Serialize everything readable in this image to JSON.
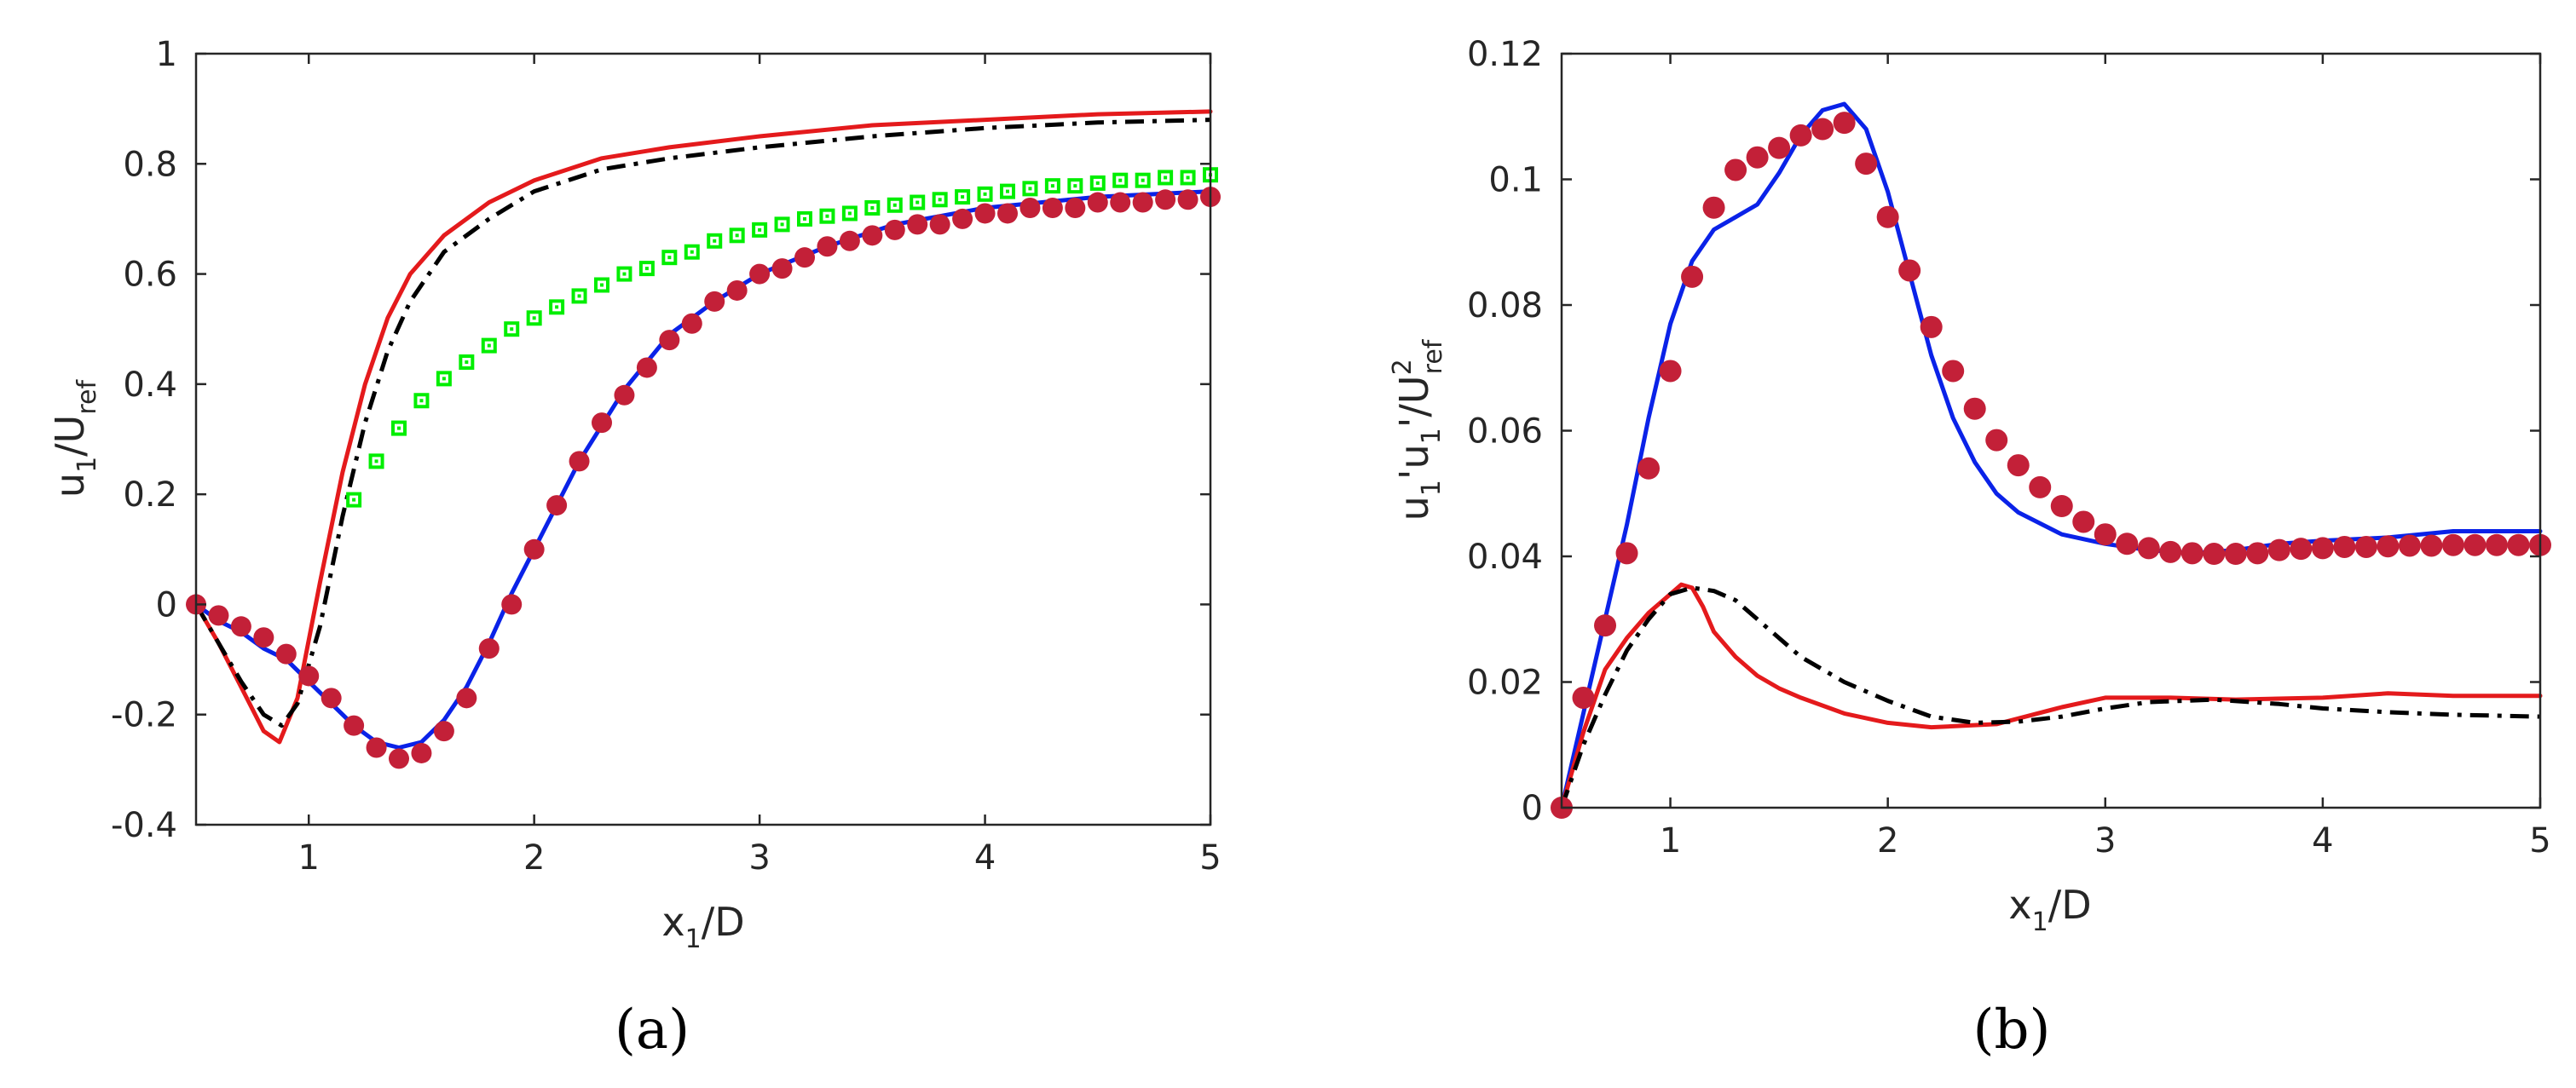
{
  "chart_data": [
    {
      "type": "line",
      "panel_label": "(a)",
      "xlabel": {
        "main": "x",
        "sub": "1",
        "rest": "/D"
      },
      "ylabel": {
        "main": "u",
        "sub": "1",
        "rest": "/U",
        "sub2": "ref"
      },
      "xlim": [
        0.5,
        5
      ],
      "ylim": [
        -0.4,
        1
      ],
      "xticks": [
        1,
        2,
        3,
        4,
        5
      ],
      "xtick_labels": [
        "1",
        "2",
        "3",
        "4",
        "5"
      ],
      "yticks": [
        -0.4,
        -0.2,
        0,
        0.2,
        0.4,
        0.6,
        0.8,
        1
      ],
      "ytick_labels": [
        "-0.4",
        "-0.2",
        "0",
        "0.2",
        "0.4",
        "0.6",
        "0.8",
        "1"
      ],
      "grid": false,
      "series": [
        {
          "name": "red-solid-line",
          "kind": "line",
          "color": "#e41a1c",
          "dash": "",
          "x": [
            0.5,
            0.6,
            0.7,
            0.8,
            0.87,
            0.95,
            1.05,
            1.15,
            1.25,
            1.35,
            1.45,
            1.6,
            1.8,
            2.0,
            2.3,
            2.6,
            3.0,
            3.5,
            4.0,
            4.5,
            5.0
          ],
          "y": [
            0.0,
            -0.07,
            -0.15,
            -0.23,
            -0.25,
            -0.17,
            0.04,
            0.24,
            0.4,
            0.52,
            0.6,
            0.67,
            0.73,
            0.77,
            0.81,
            0.83,
            0.85,
            0.87,
            0.88,
            0.89,
            0.895
          ]
        },
        {
          "name": "black-dashdot-line",
          "kind": "line",
          "color": "#000000",
          "dash": "22,10,5,10",
          "x": [
            0.5,
            0.6,
            0.7,
            0.8,
            0.88,
            0.95,
            1.05,
            1.15,
            1.25,
            1.35,
            1.45,
            1.6,
            1.8,
            2.0,
            2.3,
            2.6,
            3.0,
            3.5,
            4.0,
            4.5,
            5.0
          ],
          "y": [
            0.0,
            -0.07,
            -0.14,
            -0.2,
            -0.22,
            -0.18,
            -0.04,
            0.16,
            0.33,
            0.46,
            0.55,
            0.64,
            0.7,
            0.75,
            0.79,
            0.81,
            0.83,
            0.85,
            0.865,
            0.875,
            0.88
          ]
        },
        {
          "name": "blue-solid-line",
          "kind": "line",
          "color": "#0a22e8",
          "dash": "",
          "x": [
            0.5,
            0.6,
            0.7,
            0.8,
            0.9,
            1.0,
            1.1,
            1.2,
            1.3,
            1.4,
            1.5,
            1.6,
            1.7,
            1.8,
            1.9,
            2.0,
            2.1,
            2.2,
            2.4,
            2.6,
            2.8,
            3.0,
            3.3,
            3.6,
            4.0,
            4.5,
            5.0
          ],
          "y": [
            0.0,
            -0.03,
            -0.05,
            -0.08,
            -0.1,
            -0.14,
            -0.18,
            -0.22,
            -0.25,
            -0.26,
            -0.25,
            -0.21,
            -0.15,
            -0.07,
            0.02,
            0.1,
            0.18,
            0.26,
            0.39,
            0.49,
            0.55,
            0.6,
            0.65,
            0.69,
            0.72,
            0.74,
            0.75
          ]
        },
        {
          "name": "green-square-markers",
          "kind": "marker",
          "marker": "square",
          "color": "#00ee00",
          "x": [
            1.2,
            1.3,
            1.4,
            1.5,
            1.6,
            1.7,
            1.8,
            1.9,
            2.0,
            2.1,
            2.2,
            2.3,
            2.4,
            2.5,
            2.6,
            2.7,
            2.8,
            2.9,
            3.0,
            3.1,
            3.2,
            3.3,
            3.4,
            3.5,
            3.6,
            3.7,
            3.8,
            3.9,
            4.0,
            4.1,
            4.2,
            4.3,
            4.4,
            4.5,
            4.6,
            4.7,
            4.8,
            4.9,
            5.0
          ],
          "y": [
            0.19,
            0.26,
            0.32,
            0.37,
            0.41,
            0.44,
            0.47,
            0.5,
            0.52,
            0.54,
            0.56,
            0.58,
            0.6,
            0.61,
            0.63,
            0.64,
            0.66,
            0.67,
            0.68,
            0.69,
            0.7,
            0.705,
            0.71,
            0.72,
            0.725,
            0.73,
            0.735,
            0.74,
            0.745,
            0.75,
            0.755,
            0.76,
            0.76,
            0.765,
            0.77,
            0.77,
            0.775,
            0.775,
            0.78
          ]
        },
        {
          "name": "crimson-circle-markers",
          "kind": "marker",
          "marker": "circle",
          "color": "#c32038",
          "x": [
            0.5,
            0.6,
            0.7,
            0.8,
            0.9,
            1.0,
            1.1,
            1.2,
            1.3,
            1.4,
            1.5,
            1.6,
            1.7,
            1.8,
            1.9,
            2.0,
            2.1,
            2.2,
            2.3,
            2.4,
            2.5,
            2.6,
            2.7,
            2.8,
            2.9,
            3.0,
            3.1,
            3.2,
            3.3,
            3.4,
            3.5,
            3.6,
            3.7,
            3.8,
            3.9,
            4.0,
            4.1,
            4.2,
            4.3,
            4.4,
            4.5,
            4.6,
            4.7,
            4.8,
            4.9,
            5.0
          ],
          "y": [
            0.0,
            -0.02,
            -0.04,
            -0.06,
            -0.09,
            -0.13,
            -0.17,
            -0.22,
            -0.26,
            -0.28,
            -0.27,
            -0.23,
            -0.17,
            -0.08,
            0.0,
            0.1,
            0.18,
            0.26,
            0.33,
            0.38,
            0.43,
            0.48,
            0.51,
            0.55,
            0.57,
            0.6,
            0.61,
            0.63,
            0.65,
            0.66,
            0.67,
            0.68,
            0.69,
            0.69,
            0.7,
            0.71,
            0.71,
            0.72,
            0.72,
            0.72,
            0.73,
            0.73,
            0.73,
            0.735,
            0.735,
            0.74
          ]
        }
      ]
    },
    {
      "type": "line",
      "panel_label": "(b)",
      "xlabel": {
        "main": "x",
        "sub": "1",
        "rest": "/D"
      },
      "ylabel": {
        "p1": "u",
        "s1": "1",
        "p2": "'u",
        "s2": "1",
        "p3": "'/U",
        "sup": "2",
        "sub": "ref"
      },
      "xlim": [
        0.5,
        5
      ],
      "ylim": [
        0,
        0.12
      ],
      "xticks": [
        1,
        2,
        3,
        4,
        5
      ],
      "xtick_labels": [
        "1",
        "2",
        "3",
        "4",
        "5"
      ],
      "yticks": [
        0,
        0.02,
        0.04,
        0.06,
        0.08,
        0.1,
        0.12
      ],
      "ytick_labels": [
        "0",
        "0.02",
        "0.04",
        "0.06",
        "0.08",
        "0.1",
        "0.12"
      ],
      "grid": false,
      "series": [
        {
          "name": "blue-solid-line",
          "kind": "line",
          "color": "#0a22e8",
          "dash": "",
          "x": [
            0.5,
            0.6,
            0.7,
            0.8,
            0.9,
            1.0,
            1.1,
            1.2,
            1.3,
            1.4,
            1.5,
            1.6,
            1.7,
            1.8,
            1.9,
            2.0,
            2.1,
            2.2,
            2.3,
            2.4,
            2.5,
            2.6,
            2.8,
            3.0,
            3.2,
            3.4,
            3.6,
            3.8,
            4.0,
            4.3,
            4.6,
            5.0
          ],
          "y": [
            0.0,
            0.015,
            0.03,
            0.045,
            0.062,
            0.077,
            0.087,
            0.092,
            0.094,
            0.096,
            0.101,
            0.107,
            0.111,
            0.112,
            0.108,
            0.098,
            0.085,
            0.072,
            0.062,
            0.055,
            0.05,
            0.047,
            0.0435,
            0.042,
            0.041,
            0.0405,
            0.041,
            0.042,
            0.0425,
            0.043,
            0.044,
            0.044
          ]
        },
        {
          "name": "red-solid-line",
          "kind": "line",
          "color": "#e41a1c",
          "dash": "",
          "x": [
            0.5,
            0.6,
            0.7,
            0.8,
            0.9,
            1.0,
            1.05,
            1.1,
            1.15,
            1.2,
            1.3,
            1.4,
            1.5,
            1.6,
            1.8,
            2.0,
            2.2,
            2.5,
            2.8,
            3.0,
            3.3,
            3.6,
            4.0,
            4.3,
            4.6,
            5.0
          ],
          "y": [
            0.0,
            0.012,
            0.022,
            0.027,
            0.031,
            0.034,
            0.0355,
            0.035,
            0.032,
            0.028,
            0.024,
            0.021,
            0.019,
            0.0175,
            0.015,
            0.0135,
            0.0128,
            0.0133,
            0.016,
            0.0175,
            0.0175,
            0.0172,
            0.0175,
            0.0182,
            0.0178,
            0.0178
          ]
        },
        {
          "name": "black-dashdot-line",
          "kind": "line",
          "color": "#000000",
          "dash": "22,10,5,10",
          "x": [
            0.5,
            0.6,
            0.7,
            0.8,
            0.9,
            1.0,
            1.1,
            1.2,
            1.3,
            1.4,
            1.5,
            1.6,
            1.8,
            2.0,
            2.2,
            2.4,
            2.6,
            2.8,
            3.0,
            3.2,
            3.5,
            3.8,
            4.0,
            4.3,
            4.6,
            5.0
          ],
          "y": [
            0.0,
            0.01,
            0.018,
            0.025,
            0.03,
            0.034,
            0.035,
            0.0345,
            0.033,
            0.03,
            0.027,
            0.024,
            0.02,
            0.017,
            0.0145,
            0.0135,
            0.0137,
            0.0145,
            0.0158,
            0.0168,
            0.0172,
            0.0165,
            0.0158,
            0.0152,
            0.0148,
            0.0145
          ]
        },
        {
          "name": "crimson-circle-markers",
          "kind": "marker",
          "marker": "circle",
          "color": "#c32038",
          "x": [
            0.5,
            0.6,
            0.7,
            0.8,
            0.9,
            1.0,
            1.1,
            1.2,
            1.3,
            1.4,
            1.5,
            1.6,
            1.7,
            1.8,
            1.9,
            2.0,
            2.1,
            2.2,
            2.3,
            2.4,
            2.5,
            2.6,
            2.7,
            2.8,
            2.9,
            3.0,
            3.1,
            3.2,
            3.3,
            3.4,
            3.5,
            3.6,
            3.7,
            3.8,
            3.9,
            4.0,
            4.1,
            4.2,
            4.3,
            4.4,
            4.5,
            4.6,
            4.7,
            4.8,
            4.9,
            5.0
          ],
          "y": [
            0.0,
            0.0175,
            0.029,
            0.0405,
            0.054,
            0.0695,
            0.0845,
            0.0955,
            0.1015,
            0.1035,
            0.105,
            0.107,
            0.108,
            0.109,
            0.1025,
            0.094,
            0.0855,
            0.0765,
            0.0695,
            0.0635,
            0.0585,
            0.0545,
            0.051,
            0.048,
            0.0455,
            0.0435,
            0.042,
            0.0413,
            0.0407,
            0.0405,
            0.0404,
            0.0404,
            0.0405,
            0.041,
            0.0412,
            0.0413,
            0.0415,
            0.0415,
            0.0416,
            0.0417,
            0.0417,
            0.0418,
            0.0418,
            0.0418,
            0.0418,
            0.0418
          ]
        }
      ]
    }
  ]
}
